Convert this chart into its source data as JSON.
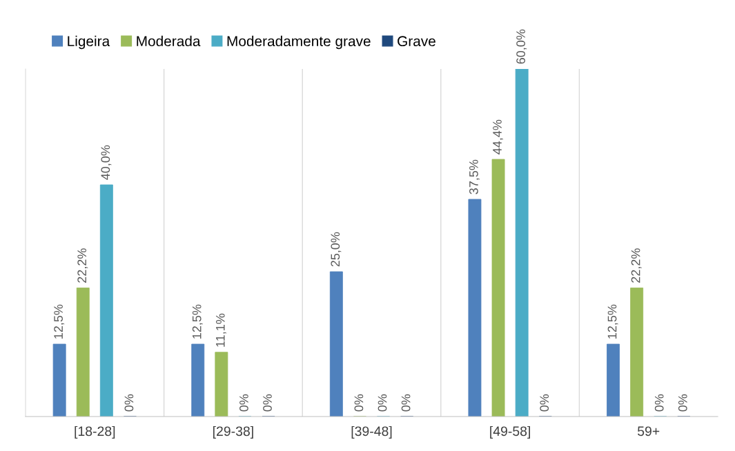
{
  "chart_data": {
    "type": "bar",
    "categories": [
      "[18-28]",
      "[29-38]",
      "[39-48]",
      "[49-58]",
      "59+"
    ],
    "series": [
      {
        "name": "Ligeira",
        "color": "#4f81bd",
        "values": [
          12.5,
          12.5,
          25.0,
          37.5,
          12.5
        ],
        "value_labels": [
          "12,5%",
          "12,5%",
          "25,0%",
          "37,5%",
          "12,5%"
        ]
      },
      {
        "name": "Moderada",
        "color": "#9bbb59",
        "values": [
          22.2,
          11.1,
          0,
          44.4,
          22.2
        ],
        "value_labels": [
          "22,2%",
          "11,1%",
          "0%",
          "44,4%",
          "22,2%"
        ]
      },
      {
        "name": "Moderadamente grave",
        "color": "#4bacc6",
        "values": [
          40.0,
          0,
          0,
          60.0,
          0
        ],
        "value_labels": [
          "40,0%",
          "0%",
          "0%",
          "60,0%",
          "0%"
        ]
      },
      {
        "name": "Grave",
        "color": "#1f497d",
        "values": [
          0,
          0,
          0,
          0,
          0
        ],
        "value_labels": [
          "0%",
          "0%",
          "0%",
          "0%",
          "0%"
        ]
      }
    ],
    "ylim": [
      0,
      60
    ],
    "tick_labels": "x",
    "grid": "x",
    "legend": "top left"
  }
}
